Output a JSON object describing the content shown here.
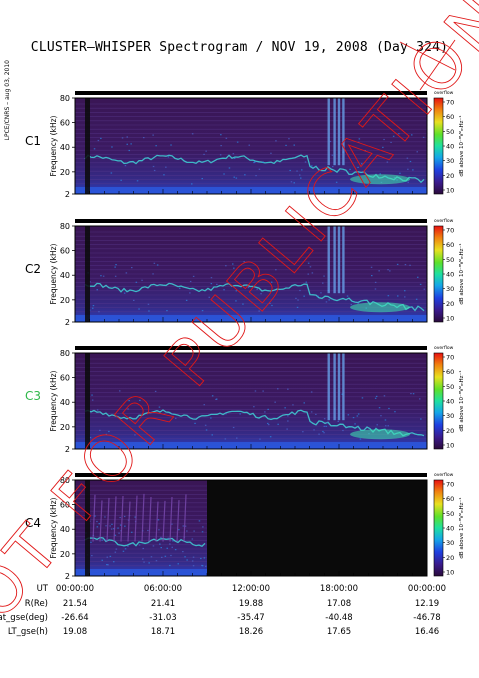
{
  "title": "CLUSTER–WHISPER Spectrogram / NOV 19, 2008 (Day 324)",
  "side_note": "LPCE/CNRS – aug 03, 2010",
  "watermark": "NOT FOR PUBLICATION",
  "colors": {
    "background": "#3b1a5a",
    "data_gap": "#0a0a0a",
    "line_emission": "#3fb8c8"
  },
  "chart_data": [
    {
      "type": "heatmap",
      "spacecraft": "C1",
      "label_color": "#000000",
      "ylabel": "Frequency (kHz)",
      "yticks": [
        "80",
        "60",
        "40",
        "20",
        "2"
      ],
      "ylim": [
        2,
        80
      ],
      "x_range_hours": [
        0,
        24
      ],
      "data_coverage_hours": [
        0,
        24
      ],
      "colorbar": {
        "unit_label": "dB above 10⁻⁸V²ₘHz⁻¹",
        "top_label": "overflow",
        "ticks": [
          "70",
          "60",
          "50",
          "40",
          "30",
          "20",
          "10"
        ],
        "range": [
          10,
          70
        ]
      }
    },
    {
      "type": "heatmap",
      "spacecraft": "C2",
      "label_color": "#000000",
      "ylabel": "Frequency (kHz)",
      "yticks": [
        "80",
        "60",
        "40",
        "20",
        "2"
      ],
      "ylim": [
        2,
        80
      ],
      "x_range_hours": [
        0,
        24
      ],
      "data_coverage_hours": [
        0,
        24
      ],
      "colorbar": {
        "unit_label": "dB above 10⁻⁸V²ₘHz⁻¹",
        "top_label": "overflow",
        "ticks": [
          "70",
          "60",
          "50",
          "40",
          "30",
          "20",
          "10"
        ],
        "range": [
          10,
          70
        ]
      }
    },
    {
      "type": "heatmap",
      "spacecraft": "C3",
      "label_color": "#2fb84a",
      "ylabel": "Frequency (kHz)",
      "yticks": [
        "80",
        "60",
        "40",
        "20",
        "2"
      ],
      "ylim": [
        2,
        80
      ],
      "x_range_hours": [
        0,
        24
      ],
      "data_coverage_hours": [
        0,
        24
      ],
      "colorbar": {
        "unit_label": "dB above 10⁻⁸V²ₘHz⁻¹",
        "top_label": "overflow",
        "ticks": [
          "70",
          "60",
          "50",
          "40",
          "30",
          "20",
          "10"
        ],
        "range": [
          10,
          70
        ]
      }
    },
    {
      "type": "heatmap",
      "spacecraft": "C4",
      "label_color": "#000000",
      "ylabel": "Frequency (kHz)",
      "yticks": [
        "80",
        "60",
        "40",
        "20",
        "2"
      ],
      "ylim": [
        2,
        80
      ],
      "x_range_hours": [
        0,
        24
      ],
      "data_coverage_hours": [
        0,
        9
      ],
      "colorbar": {
        "unit_label": "dB above 10⁻⁸V²ₘHz⁻¹",
        "top_label": "overflow",
        "ticks": [
          "70",
          "60",
          "50",
          "40",
          "30",
          "20",
          "10"
        ],
        "range": [
          10,
          70
        ]
      }
    }
  ],
  "orbit_table": {
    "rows": [
      {
        "label": "UT",
        "values": [
          "00:00:00",
          "06:00:00",
          "12:00:00",
          "18:00:00",
          "00:00:00"
        ]
      },
      {
        "label": "R(Re)",
        "values": [
          "21.54",
          "21.41",
          "19.88",
          "17.08",
          "12.19"
        ]
      },
      {
        "label": "Lat_gse(deg)",
        "values": [
          "-26.64",
          "-31.03",
          "-35.47",
          "-40.48",
          "-46.78"
        ]
      },
      {
        "label": "LT_gse(h)",
        "values": [
          "19.08",
          "18.71",
          "18.26",
          "17.65",
          "16.46"
        ]
      }
    ]
  }
}
